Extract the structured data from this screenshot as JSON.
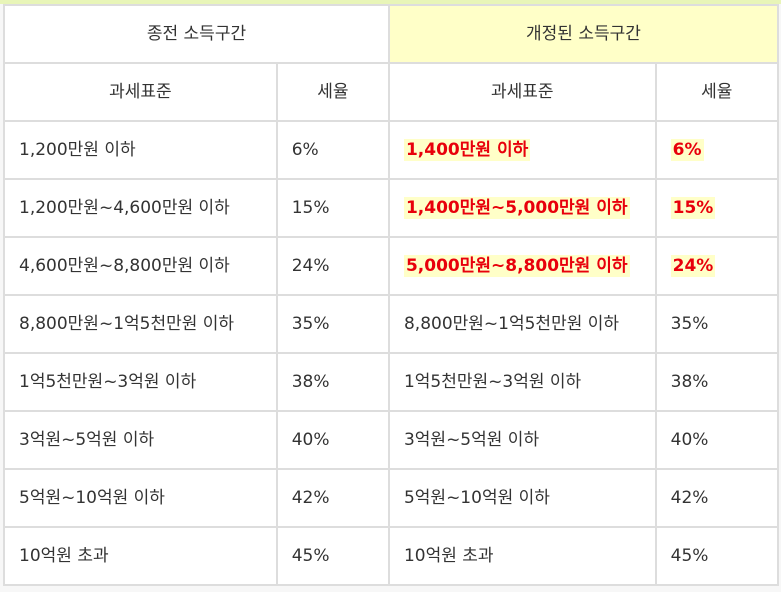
{
  "colors": {
    "highlight_background": "#ffffc8",
    "highlight_text": "#e8000b",
    "border": "#dddddd"
  },
  "header": {
    "old_group": "종전 소득구간",
    "new_group": "개정된 소득구간",
    "col_base_old": "과세표준",
    "col_rate_old": "세율",
    "col_base_new": "과세표준",
    "col_rate_new": "세율"
  },
  "rows": [
    {
      "old_base": "1,200만원 이하",
      "old_rate": "6%",
      "new_base": "1,400만원 이하",
      "new_rate": "6%",
      "changed": true
    },
    {
      "old_base": "1,200만원~4,600만원 이하",
      "old_rate": "15%",
      "new_base": "1,400만원~5,000만원 이하",
      "new_rate": "15%",
      "changed": true
    },
    {
      "old_base": "4,600만원~8,800만원 이하",
      "old_rate": "24%",
      "new_base": "5,000만원~8,800만원 이하",
      "new_rate": "24%",
      "changed": true
    },
    {
      "old_base": "8,800만원~1억5천만원 이하",
      "old_rate": "35%",
      "new_base": "8,800만원~1억5천만원 이하",
      "new_rate": "35%",
      "changed": false
    },
    {
      "old_base": "1억5천만원~3억원 이하",
      "old_rate": "38%",
      "new_base": "1억5천만원~3억원 이하",
      "new_rate": "38%",
      "changed": false
    },
    {
      "old_base": "3억원~5억원 이하",
      "old_rate": "40%",
      "new_base": "3억원~5억원 이하",
      "new_rate": "40%",
      "changed": false
    },
    {
      "old_base": "5억원~10억원 이하",
      "old_rate": "42%",
      "new_base": "5억원~10억원 이하",
      "new_rate": "42%",
      "changed": false
    },
    {
      "old_base": "10억원 초과",
      "old_rate": "45%",
      "new_base": "10억원 초과",
      "new_rate": "45%",
      "changed": false
    }
  ]
}
